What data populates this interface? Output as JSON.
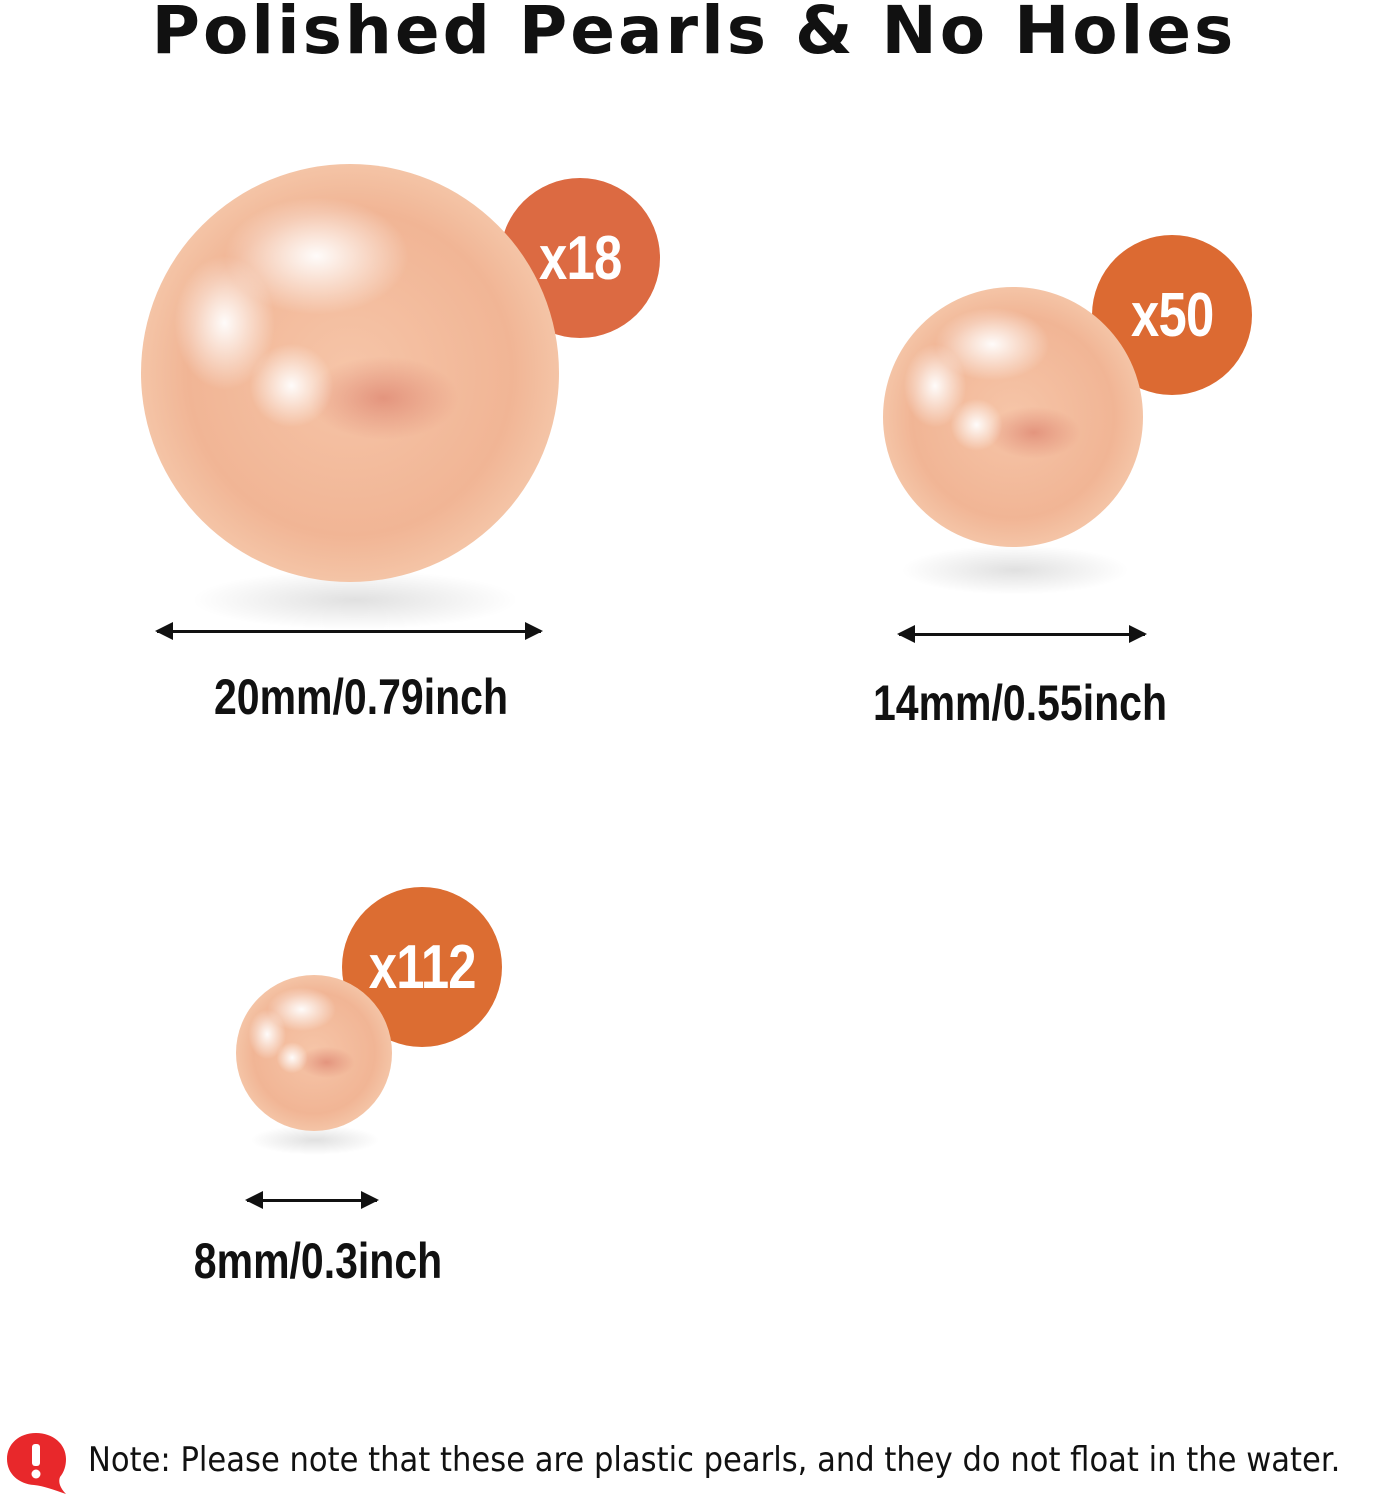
{
  "title": "Polished Pearls & No Holes",
  "accent_color": "#dc6a3c",
  "pearls": [
    {
      "count": "x18",
      "size": "20mm/0.79inch"
    },
    {
      "count": "x50",
      "size": "14mm/0.55inch"
    },
    {
      "count": "x112",
      "size": "8mm/0.3inch"
    }
  ],
  "note": {
    "icon": "exclamation-speech-bubble-icon",
    "text": "Note: Please note that these are plastic pearls, and they do not float in the water."
  }
}
